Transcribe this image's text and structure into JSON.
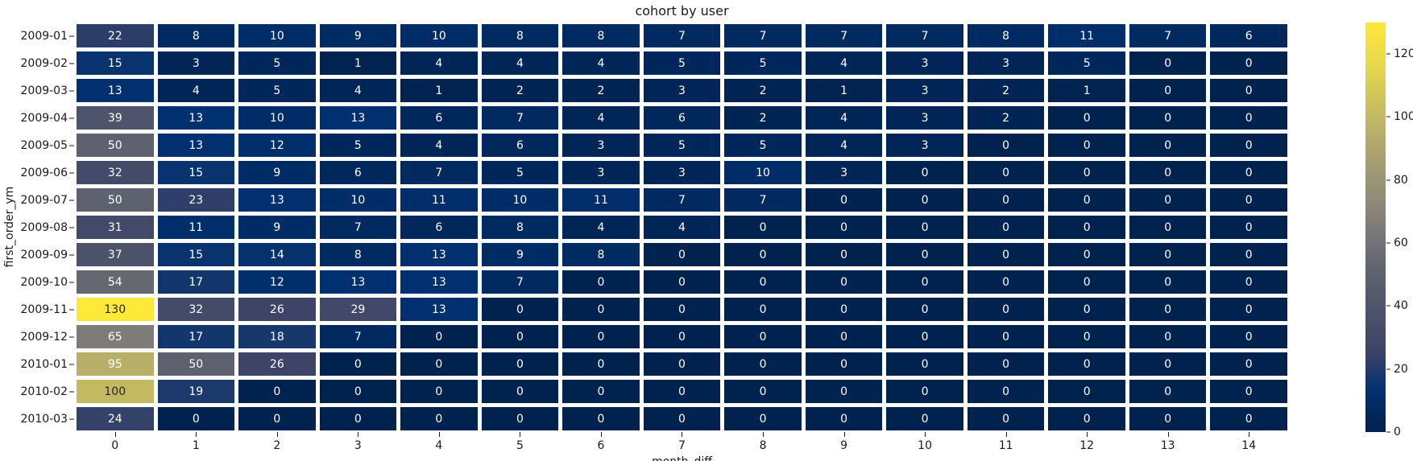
{
  "title": "cohort by user",
  "chart_data": {
    "type": "heatmap",
    "title": "cohort by user",
    "xlabel": "month_diff",
    "ylabel": "first_order_ym",
    "x_categories": [
      "0",
      "1",
      "2",
      "3",
      "4",
      "5",
      "6",
      "7",
      "8",
      "9",
      "10",
      "11",
      "12",
      "13",
      "14"
    ],
    "y_categories": [
      "2009-01",
      "2009-02",
      "2009-03",
      "2009-04",
      "2009-05",
      "2009-06",
      "2009-07",
      "2009-08",
      "2009-09",
      "2009-10",
      "2009-11",
      "2009-12",
      "2010-01",
      "2010-02",
      "2010-03"
    ],
    "values": [
      [
        22,
        8,
        10,
        9,
        10,
        8,
        8,
        7,
        7,
        7,
        7,
        8,
        11,
        7,
        6
      ],
      [
        15,
        3,
        5,
        1,
        4,
        4,
        4,
        5,
        5,
        4,
        3,
        3,
        5,
        0,
        0
      ],
      [
        13,
        4,
        5,
        4,
        1,
        2,
        2,
        3,
        2,
        1,
        3,
        2,
        1,
        0,
        0
      ],
      [
        39,
        13,
        10,
        13,
        6,
        7,
        4,
        6,
        2,
        4,
        3,
        2,
        0,
        0,
        0
      ],
      [
        50,
        13,
        12,
        5,
        4,
        6,
        3,
        5,
        5,
        4,
        3,
        0,
        0,
        0,
        0
      ],
      [
        32,
        15,
        9,
        6,
        7,
        5,
        3,
        3,
        10,
        3,
        0,
        0,
        0,
        0,
        0
      ],
      [
        50,
        23,
        13,
        10,
        11,
        10,
        11,
        7,
        7,
        0,
        0,
        0,
        0,
        0,
        0
      ],
      [
        31,
        11,
        9,
        7,
        6,
        8,
        4,
        4,
        0,
        0,
        0,
        0,
        0,
        0,
        0
      ],
      [
        37,
        15,
        14,
        8,
        13,
        9,
        8,
        0,
        0,
        0,
        0,
        0,
        0,
        0,
        0
      ],
      [
        54,
        17,
        12,
        13,
        13,
        7,
        0,
        0,
        0,
        0,
        0,
        0,
        0,
        0,
        0
      ],
      [
        130,
        32,
        26,
        29,
        13,
        0,
        0,
        0,
        0,
        0,
        0,
        0,
        0,
        0,
        0
      ],
      [
        65,
        17,
        18,
        7,
        0,
        0,
        0,
        0,
        0,
        0,
        0,
        0,
        0,
        0,
        0
      ],
      [
        95,
        50,
        26,
        0,
        0,
        0,
        0,
        0,
        0,
        0,
        0,
        0,
        0,
        0,
        0
      ],
      [
        100,
        19,
        0,
        0,
        0,
        0,
        0,
        0,
        0,
        0,
        0,
        0,
        0,
        0,
        0
      ],
      [
        24,
        0,
        0,
        0,
        0,
        0,
        0,
        0,
        0,
        0,
        0,
        0,
        0,
        0,
        0
      ]
    ],
    "vmin": 0,
    "vmax": 130,
    "annotated": true,
    "grid": false,
    "colorbar": {
      "position": "right",
      "ticks": [
        0,
        20,
        40,
        60,
        80,
        100,
        120
      ]
    },
    "colormap": {
      "name": "cividis",
      "stops": [
        "#00224e",
        "#00306f",
        "#3d4467",
        "#4d546b",
        "#61646f",
        "#7e7b79",
        "#969276",
        "#b0a86c",
        "#ccc05e",
        "#e7d949",
        "#fee838"
      ]
    }
  },
  "colors": {
    "background": "#ffffff",
    "cell_gap": "#ffffff",
    "annotation_light": "#ffffff",
    "annotation_dark": "#262626",
    "axis_text": "#1a1a1a"
  }
}
